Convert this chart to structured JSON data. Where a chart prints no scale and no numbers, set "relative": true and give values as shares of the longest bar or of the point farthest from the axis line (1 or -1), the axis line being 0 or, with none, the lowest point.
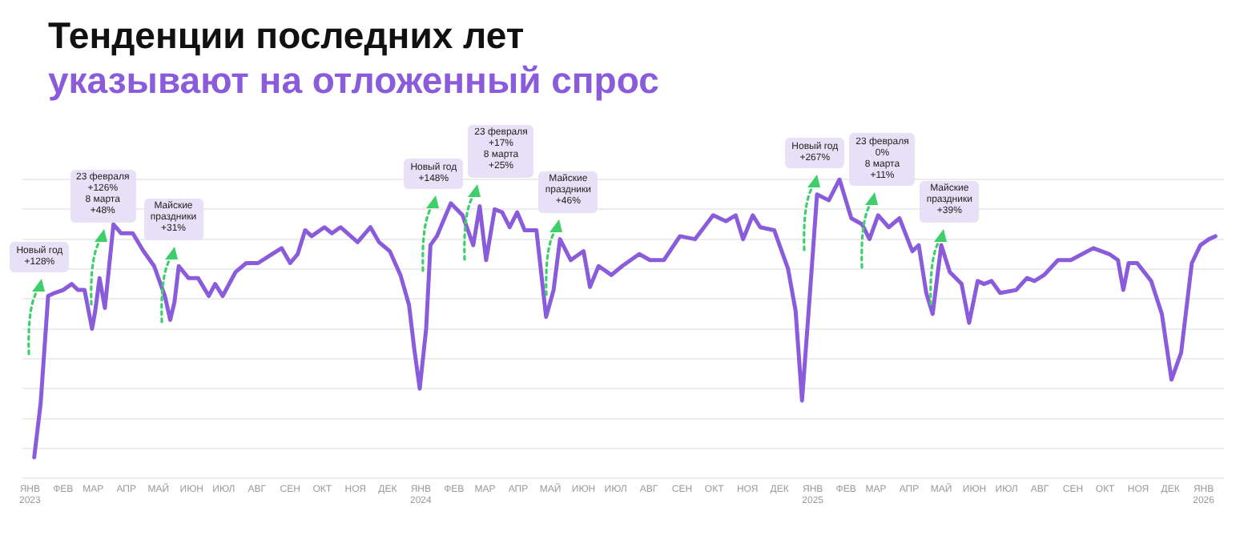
{
  "chart_data": {
    "type": "line",
    "title": "Тенденции последних лет",
    "subtitle": "указывают на отложенный спрос",
    "relative": true,
    "grid": "y",
    "legend": false,
    "marker": "none",
    "line_style": "solid",
    "xlim": [
      "2022-12-25",
      "2026-01-20"
    ],
    "xticks": [
      {
        "value": "2023-01-01",
        "label": "ЯНВ\n2023"
      },
      {
        "value": "2023-02-01",
        "label": "ФЕВ"
      },
      {
        "value": "2023-03-01",
        "label": "МАР"
      },
      {
        "value": "2023-04-01",
        "label": "АПР"
      },
      {
        "value": "2023-05-01",
        "label": "МАЙ"
      },
      {
        "value": "2023-06-01",
        "label": "ИЮН"
      },
      {
        "value": "2023-07-01",
        "label": "ИЮЛ"
      },
      {
        "value": "2023-08-01",
        "label": "АВГ"
      },
      {
        "value": "2023-09-01",
        "label": "СЕН"
      },
      {
        "value": "2023-10-01",
        "label": "ОКТ"
      },
      {
        "value": "2023-11-01",
        "label": "НОЯ"
      },
      {
        "value": "2023-12-01",
        "label": "ДЕК"
      },
      {
        "value": "2024-01-01",
        "label": "ЯНВ\n2024"
      },
      {
        "value": "2024-02-01",
        "label": "ФЕВ"
      },
      {
        "value": "2024-03-01",
        "label": "МАР"
      },
      {
        "value": "2024-04-01",
        "label": "АПР"
      },
      {
        "value": "2024-05-01",
        "label": "МАЙ"
      },
      {
        "value": "2024-06-01",
        "label": "ИЮН"
      },
      {
        "value": "2024-07-01",
        "label": "ИЮЛ"
      },
      {
        "value": "2024-08-01",
        "label": "АВГ"
      },
      {
        "value": "2024-09-01",
        "label": "СЕН"
      },
      {
        "value": "2024-10-01",
        "label": "ОКТ"
      },
      {
        "value": "2024-11-01",
        "label": "НОЯ"
      },
      {
        "value": "2024-12-01",
        "label": "ДЕК"
      },
      {
        "value": "2025-01-01",
        "label": "ЯНВ\n2025"
      },
      {
        "value": "2025-02-01",
        "label": "ФЕВ"
      },
      {
        "value": "2025-03-01",
        "label": "МАР"
      },
      {
        "value": "2025-04-01",
        "label": "АПР"
      },
      {
        "value": "2025-05-01",
        "label": "МАЙ"
      },
      {
        "value": "2025-06-01",
        "label": "ИЮН"
      },
      {
        "value": "2025-07-01",
        "label": "ИЮЛ"
      },
      {
        "value": "2025-08-01",
        "label": "АВГ"
      },
      {
        "value": "2025-09-01",
        "label": "СЕН"
      },
      {
        "value": "2025-10-01",
        "label": "ОКТ"
      },
      {
        "value": "2025-11-01",
        "label": "НОЯ"
      },
      {
        "value": "2025-12-01",
        "label": "ДЕК"
      },
      {
        "value": "2026-01-01",
        "label": "ЯНВ\n2026"
      }
    ],
    "series": [
      {
        "color": "#8a5cdb",
        "x": [
          "2023-01-05",
          "2023-01-11",
          "2023-01-18",
          "2023-01-24",
          "2023-02-01",
          "2023-02-09",
          "2023-02-15",
          "2023-02-21",
          "2023-02-28",
          "2023-03-03",
          "2023-03-07",
          "2023-03-12",
          "2023-03-20",
          "2023-03-27",
          "2023-04-07",
          "2023-04-17",
          "2023-04-27",
          "2023-05-07",
          "2023-05-12",
          "2023-05-16",
          "2023-05-20",
          "2023-05-29",
          "2023-06-07",
          "2023-06-17",
          "2023-06-23",
          "2023-06-30",
          "2023-07-12",
          "2023-07-22",
          "2023-08-02",
          "2023-08-15",
          "2023-08-24",
          "2023-09-01",
          "2023-09-08",
          "2023-09-15",
          "2023-09-21",
          "2023-10-03",
          "2023-10-10",
          "2023-10-18",
          "2023-11-03",
          "2023-11-15",
          "2023-11-23",
          "2023-12-03",
          "2023-12-13",
          "2023-12-21",
          "2023-12-26",
          "2023-12-31",
          "2024-01-06",
          "2024-01-10",
          "2024-01-16",
          "2024-01-29",
          "2024-02-09",
          "2024-02-19",
          "2024-02-25",
          "2024-03-02",
          "2024-03-10",
          "2024-03-17",
          "2024-03-24",
          "2024-03-31",
          "2024-04-07",
          "2024-04-18",
          "2024-04-27",
          "2024-05-04",
          "2024-05-10",
          "2024-05-20",
          "2024-06-01",
          "2024-06-07",
          "2024-06-15",
          "2024-06-27",
          "2024-07-07",
          "2024-07-23",
          "2024-08-02",
          "2024-08-15",
          "2024-08-30",
          "2024-09-13",
          "2024-09-30",
          "2024-10-12",
          "2024-10-21",
          "2024-10-28",
          "2024-11-06",
          "2024-11-13",
          "2024-11-26",
          "2024-12-09",
          "2024-12-16",
          "2024-12-22",
          "2024-12-29",
          "2025-01-05",
          "2025-01-16",
          "2025-01-26",
          "2025-02-06",
          "2025-02-16",
          "2025-02-23",
          "2025-03-03",
          "2025-03-13",
          "2025-03-23",
          "2025-04-04",
          "2025-04-10",
          "2025-04-17",
          "2025-04-23",
          "2025-05-01",
          "2025-05-09",
          "2025-05-20",
          "2025-05-27",
          "2025-06-04",
          "2025-06-10",
          "2025-06-17",
          "2025-06-25",
          "2025-07-10",
          "2025-07-20",
          "2025-07-27",
          "2025-08-05",
          "2025-08-18",
          "2025-08-30",
          "2025-09-20",
          "2025-10-05",
          "2025-10-13",
          "2025-10-18",
          "2025-10-23",
          "2025-10-31",
          "2025-11-13",
          "2025-11-23",
          "2025-12-02",
          "2025-12-11",
          "2025-12-21",
          "2025-12-29",
          "2026-01-06",
          "2026-01-12"
        ],
        "values": [
          0.07,
          0.25,
          0.61,
          0.62,
          0.63,
          0.65,
          0.63,
          0.63,
          0.5,
          0.56,
          0.67,
          0.57,
          0.85,
          0.82,
          0.82,
          0.76,
          0.71,
          0.61,
          0.53,
          0.59,
          0.71,
          0.67,
          0.67,
          0.61,
          0.65,
          0.61,
          0.69,
          0.72,
          0.72,
          0.75,
          0.77,
          0.72,
          0.75,
          0.83,
          0.81,
          0.84,
          0.82,
          0.84,
          0.79,
          0.84,
          0.79,
          0.76,
          0.68,
          0.58,
          0.43,
          0.3,
          0.5,
          0.78,
          0.81,
          0.92,
          0.88,
          0.78,
          0.91,
          0.73,
          0.9,
          0.89,
          0.84,
          0.89,
          0.83,
          0.83,
          0.54,
          0.63,
          0.8,
          0.73,
          0.76,
          0.64,
          0.71,
          0.68,
          0.71,
          0.75,
          0.73,
          0.73,
          0.81,
          0.8,
          0.88,
          0.86,
          0.88,
          0.8,
          0.88,
          0.84,
          0.83,
          0.7,
          0.56,
          0.26,
          0.6,
          0.95,
          0.93,
          1.0,
          0.87,
          0.85,
          0.8,
          0.88,
          0.84,
          0.87,
          0.76,
          0.78,
          0.62,
          0.55,
          0.78,
          0.69,
          0.65,
          0.52,
          0.66,
          0.65,
          0.66,
          0.62,
          0.63,
          0.67,
          0.66,
          0.68,
          0.73,
          0.73,
          0.77,
          0.75,
          0.73,
          0.63,
          0.72,
          0.72,
          0.66,
          0.55,
          0.33,
          0.42,
          0.72,
          0.78,
          0.8,
          0.81
        ]
      }
    ],
    "annotations": [
      {
        "text": "Новый год\n+128%",
        "x": "2023-01-10",
        "y": 0.65
      },
      {
        "text": "23 февраля\n+126%\n8 марта\n+48%",
        "x": "2023-03-10",
        "y": 0.82
      },
      {
        "text": "Майские\nпраздники\n+31%",
        "x": "2023-05-15",
        "y": 0.76
      },
      {
        "text": "Новый год\n+148%",
        "x": "2024-01-13",
        "y": 0.93
      },
      {
        "text": "23 февраля\n+17%\n8 марта\n+25%",
        "x": "2024-02-22",
        "y": 0.97
      },
      {
        "text": "Майские\nпраздники\n+46%",
        "x": "2024-05-07",
        "y": 0.85
      },
      {
        "text": "Новый год\n+267%",
        "x": "2025-01-03",
        "y": 1.0
      },
      {
        "text": "23 февраля\n0%\n8 марта\n+11%",
        "x": "2025-02-27",
        "y": 0.94
      },
      {
        "text": "Майские\nпраздники\n+39%",
        "x": "2025-05-01",
        "y": 0.82
      }
    ]
  }
}
